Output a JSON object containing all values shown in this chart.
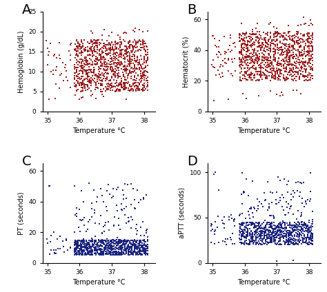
{
  "panel_labels": [
    "A",
    "B",
    "C",
    "D"
  ],
  "red_color": "#9B1C1C",
  "blue_color": "#1A237E",
  "dot_size": 3,
  "panel_A": {
    "ylabel": "Hemoglobin (g/dL)",
    "xlabel": "Temperature °C",
    "xlim": [
      34.85,
      38.35
    ],
    "ylim": [
      0,
      25
    ],
    "xticks": [
      35,
      36,
      37,
      38
    ],
    "yticks": [
      0,
      5,
      10,
      15,
      20,
      25
    ]
  },
  "panel_B": {
    "ylabel": "Hematocrit (%)",
    "xlabel": "Temperature °C",
    "xlim": [
      34.85,
      38.35
    ],
    "ylim": [
      0,
      65
    ],
    "xticks": [
      35,
      36,
      37,
      38
    ],
    "yticks": [
      0,
      20,
      40,
      60
    ]
  },
  "panel_C": {
    "ylabel": "PT (seconds)",
    "xlabel": "Temperature °C",
    "xlim": [
      34.85,
      38.35
    ],
    "ylim": [
      0,
      65
    ],
    "xticks": [
      35,
      36,
      37,
      38
    ],
    "yticks": [
      0,
      20,
      40,
      60
    ]
  },
  "panel_D": {
    "ylabel": "aPTT (seconds)",
    "xlabel": "Temperature °C",
    "xlim": [
      34.85,
      38.35
    ],
    "ylim": [
      0,
      110
    ],
    "xticks": [
      35,
      36,
      37,
      38
    ],
    "yticks": [
      0,
      50,
      100
    ]
  }
}
